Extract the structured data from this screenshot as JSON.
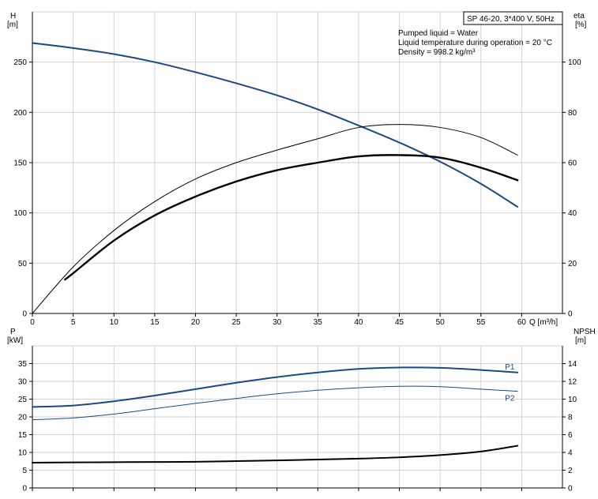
{
  "chart_data": [
    {
      "type": "line",
      "panel": "performance",
      "info_box": "SP 46-20, 3*400 V, 50Hz",
      "info_lines": [
        "Pumped liquid = Water",
        "Liquid temperature during operation = 20 °C",
        "Density = 998.2 kg/m³"
      ],
      "ylabel_left": [
        "H",
        "[m]"
      ],
      "ylabel_right": [
        "eta",
        "[%]"
      ],
      "xlabel": "Q [m³/h]",
      "x_ticks": [
        0,
        5,
        10,
        15,
        20,
        25,
        30,
        35,
        40,
        45,
        50,
        55,
        60
      ],
      "y_left_ticks": [
        0,
        50,
        100,
        150,
        200,
        250
      ],
      "y_right_ticks": [
        0,
        20,
        40,
        60,
        80,
        100
      ],
      "xlim": [
        0,
        65
      ],
      "ylim_left": [
        0,
        300
      ],
      "ylim_right": [
        0,
        120
      ],
      "grid": true,
      "series": [
        {
          "axis": "left",
          "color": "#1a4a84",
          "width": 2,
          "x": [
            0,
            5,
            10,
            15,
            20,
            25,
            30,
            35,
            40,
            45,
            50,
            55,
            59.5
          ],
          "y": [
            269,
            264,
            258,
            250,
            240,
            229,
            217,
            203,
            187,
            170,
            151,
            129,
            106
          ]
        },
        {
          "axis": "right",
          "color": "#000000",
          "width": 1,
          "x": [
            0,
            5,
            10,
            15,
            20,
            25,
            30,
            35,
            40,
            45,
            50,
            55,
            59.5
          ],
          "y": [
            0,
            18.5,
            33,
            44.5,
            53.5,
            60,
            65,
            69.5,
            74,
            75.2,
            74,
            70,
            63
          ]
        },
        {
          "axis": "right",
          "color": "#000000",
          "width": 2.4,
          "x": [
            4,
            5,
            10,
            15,
            20,
            25,
            30,
            35,
            40,
            45,
            50,
            55,
            59.5
          ],
          "y": [
            13.5,
            16,
            29,
            39,
            46.5,
            52.5,
            57,
            60,
            62.5,
            63,
            62,
            58,
            53
          ]
        }
      ]
    },
    {
      "type": "line",
      "panel": "power_npsh",
      "ylabel_left": [
        "P",
        "[kW]"
      ],
      "ylabel_right": [
        "NPSH",
        "[m]"
      ],
      "y_left_ticks": [
        0,
        5,
        10,
        15,
        20,
        25,
        30,
        35
      ],
      "y_right_ticks": [
        0,
        2,
        4,
        6,
        8,
        10,
        12,
        14
      ],
      "xlim": [
        0,
        65
      ],
      "ylim_left": [
        0,
        40
      ],
      "ylim_right": [
        0,
        16
      ],
      "grid": true,
      "series": [
        {
          "name": "P1",
          "axis": "left",
          "color": "#1a4a84",
          "width": 2,
          "x": [
            0,
            5,
            10,
            15,
            20,
            25,
            30,
            35,
            40,
            45,
            50,
            55,
            59.5
          ],
          "y": [
            22.8,
            23.2,
            24.4,
            26,
            27.8,
            29.6,
            31.2,
            32.5,
            33.5,
            33.9,
            33.8,
            33.2,
            32.5
          ]
        },
        {
          "name": "P2",
          "axis": "left",
          "color": "#1a4a84",
          "width": 1,
          "x": [
            0,
            5,
            10,
            15,
            20,
            25,
            30,
            35,
            40,
            45,
            50,
            55,
            59.5
          ],
          "y": [
            19.2,
            19.7,
            20.8,
            22.3,
            23.8,
            25.2,
            26.5,
            27.5,
            28.2,
            28.6,
            28.5,
            27.8,
            27.2
          ]
        },
        {
          "axis": "right",
          "color": "#000000",
          "width": 2,
          "x": [
            0,
            5,
            10,
            15,
            20,
            25,
            30,
            35,
            40,
            45,
            50,
            55,
            59.5
          ],
          "y": [
            2.85,
            2.88,
            2.9,
            2.92,
            2.95,
            3.02,
            3.1,
            3.2,
            3.3,
            3.45,
            3.7,
            4.1,
            4.75
          ]
        }
      ]
    }
  ]
}
